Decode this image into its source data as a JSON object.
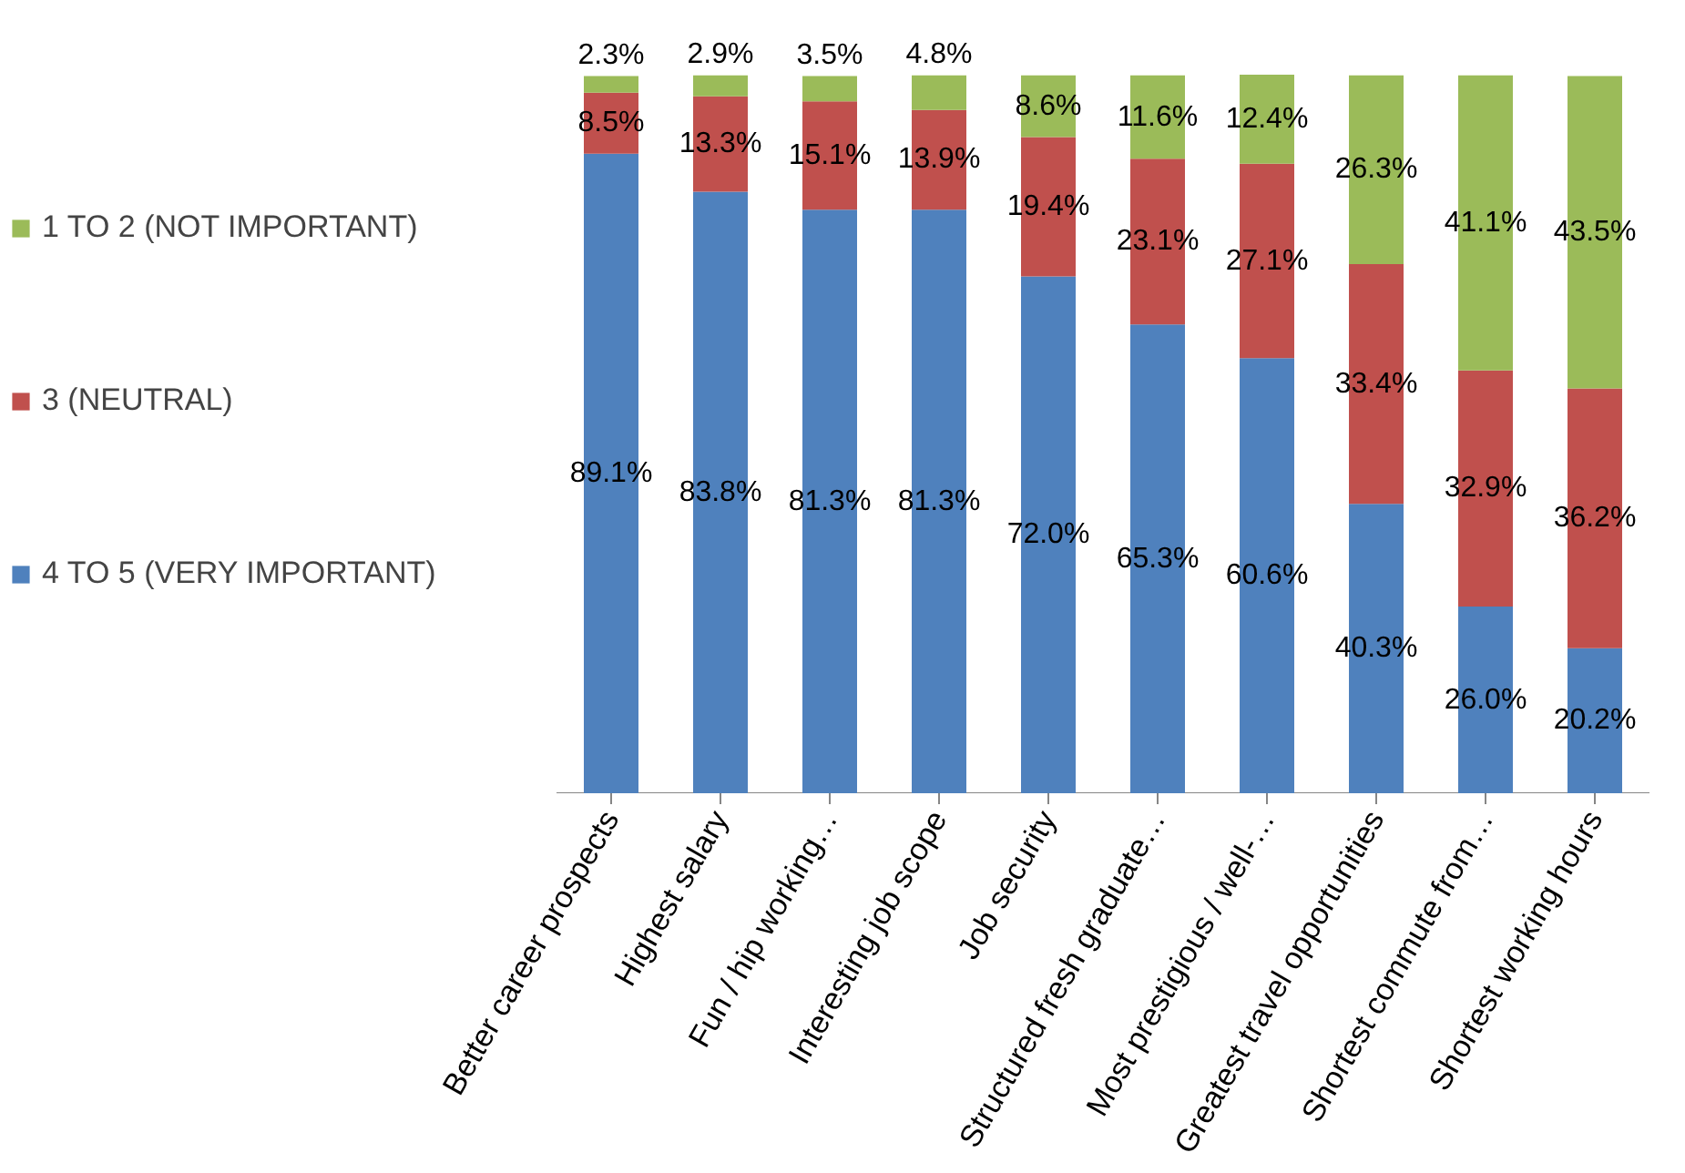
{
  "chart_data": {
    "type": "bar",
    "stacked": true,
    "legend": "left",
    "grid": false,
    "categories": [
      "Better career prospects",
      "Highest salary",
      "Fun / hip working…",
      "Interesting job scope",
      "Job security",
      "Structured fresh graduate…",
      "Most prestigious / well-…",
      "Greatest travel opportunities",
      "Shortest commute from…",
      "Shortest working hours"
    ],
    "series": [
      {
        "name": "4 TO 5 (VERY IMPORTANT)",
        "color": "#4f81bd",
        "values": [
          89.1,
          83.8,
          81.3,
          81.3,
          72.0,
          65.3,
          60.6,
          40.3,
          26.0,
          20.2
        ],
        "value_labels": [
          "89.1%",
          "83.8%",
          "81.3%",
          "81.3%",
          "72.0%",
          "65.3%",
          "60.6%",
          "40.3%",
          "26.0%",
          "20.2%"
        ]
      },
      {
        "name": "3 (NEUTRAL)",
        "color": "#c0504d",
        "values": [
          8.5,
          13.3,
          15.1,
          13.9,
          19.4,
          23.1,
          27.1,
          33.4,
          32.9,
          36.2
        ],
        "value_labels": [
          "8.5%",
          "13.3%",
          "15.1%",
          "13.9%",
          "19.4%",
          "23.1%",
          "27.1%",
          "33.4%",
          "32.9%",
          "36.2%"
        ]
      },
      {
        "name": "1 TO 2 (NOT IMPORTANT)",
        "color": "#9bbb59",
        "values": [
          2.3,
          2.9,
          3.5,
          4.8,
          8.6,
          11.6,
          12.4,
          26.3,
          41.1,
          43.5
        ],
        "value_labels": [
          "2.3%",
          "2.9%",
          "3.5%",
          "4.8%",
          "8.6%",
          "11.6%",
          "12.4%",
          "26.3%",
          "41.1%",
          "43.5%"
        ]
      }
    ]
  }
}
